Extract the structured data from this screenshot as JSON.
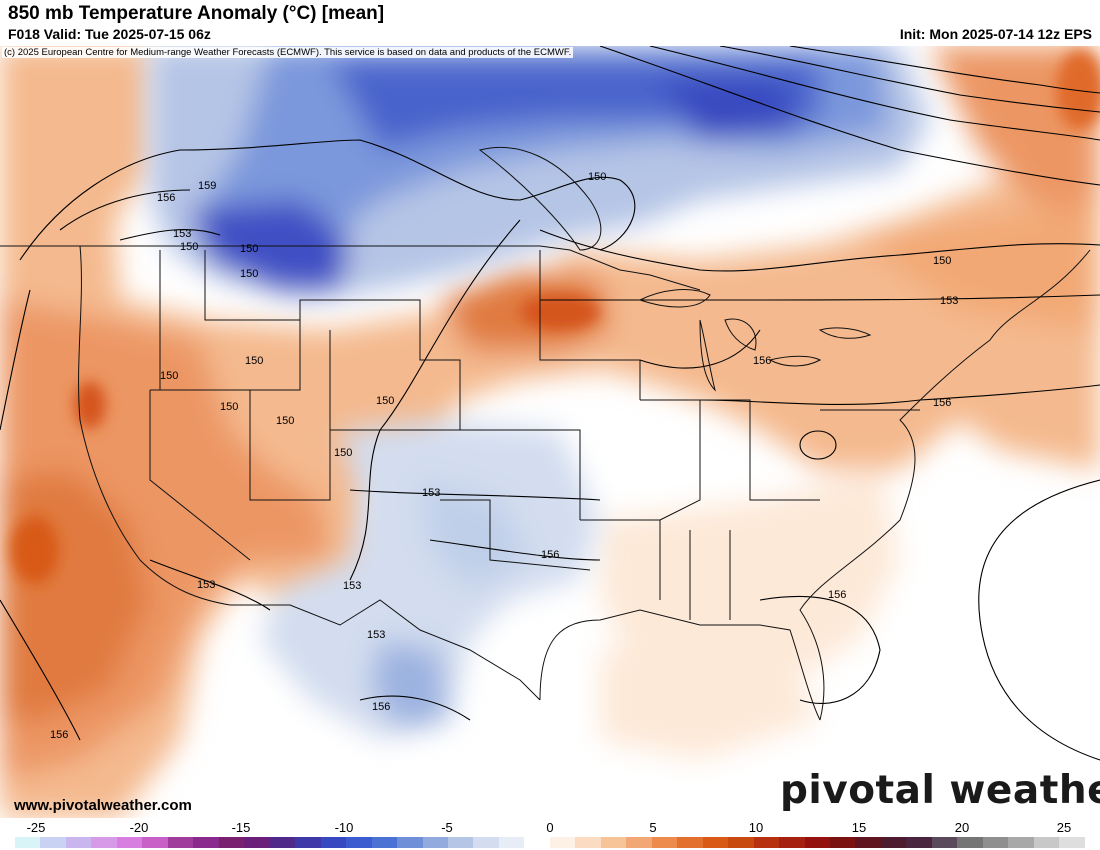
{
  "header": {
    "title": "850 mb Temperature Anomaly (°C) [mean]",
    "valid": "F018 Valid: Tue 2025-07-15 06z",
    "init": "Init: Mon 2025-07-14 12z EPS"
  },
  "credit": "(c) 2025 European Centre for Medium-range Weather Forecasts (ECMWF). This service is based on data and products of the ECMWF.",
  "footer": {
    "site": "www.pivotalweather.com",
    "logo": "pivotal weather"
  },
  "colorbar": {
    "ticks": [
      "-25",
      "-20",
      "-15",
      "-10",
      "-5",
      "0",
      "5",
      "10",
      "15",
      "20",
      "25"
    ],
    "colors": [
      "#d9f4f7",
      "#c9d2f3",
      "#c9b6ef",
      "#d79ae8",
      "#d77ee0",
      "#c860c8",
      "#a03c9c",
      "#8a2a8e",
      "#7a2070",
      "#6a1f7a",
      "#4f2a8a",
      "#3f38a8",
      "#3848c0",
      "#3a5cd0",
      "#4a72d4",
      "#6f8fd8",
      "#92aade",
      "#b5c5e6",
      "#d3ddef",
      "#e6edf6",
      "#ffffff",
      "#fdf1e6",
      "#fbdcc2",
      "#f7c49a",
      "#f2a874",
      "#ec8b4c",
      "#e3702f",
      "#d85a16",
      "#c84a0f",
      "#b7310f",
      "#a5200e",
      "#931210",
      "#7a1212",
      "#601420",
      "#4e1a30",
      "#4a2540",
      "#5a4a5c",
      "#757575",
      "#8f8f8f",
      "#a8a8a8",
      "#c8c8c8",
      "#dedede"
    ]
  },
  "contour_labels": [
    "159",
    "156",
    "153",
    "150",
    "150",
    "150",
    "150",
    "150",
    "150",
    "150",
    "150",
    "153",
    "156",
    "150",
    "153",
    "156",
    "153",
    "156",
    "153",
    "153",
    "156",
    "156",
    "156",
    "150",
    "150"
  ]
}
